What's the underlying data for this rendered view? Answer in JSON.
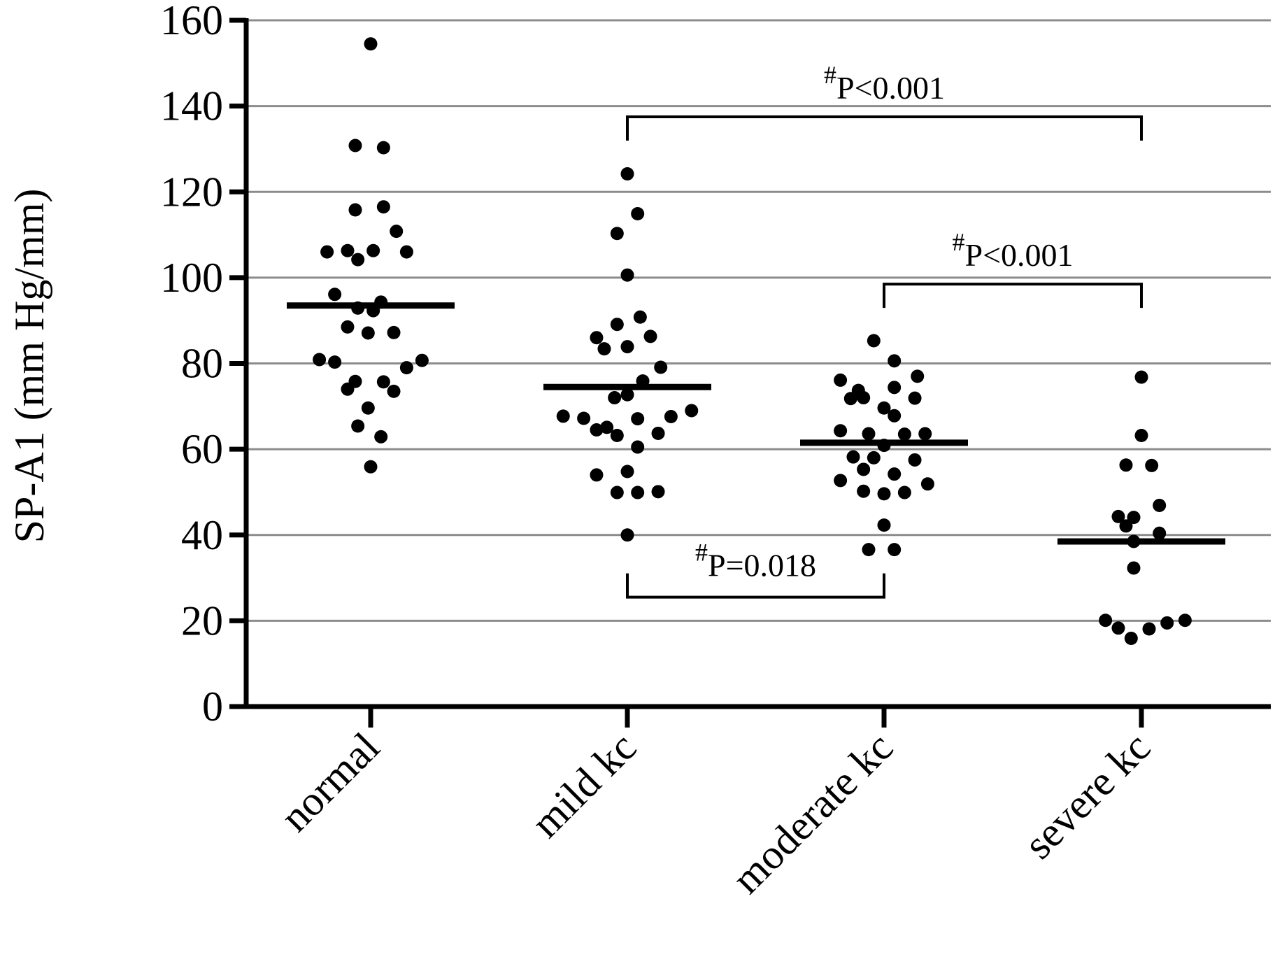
{
  "chart_data": {
    "type": "scatter",
    "ylabel": "SP-A1 (mm Hg/mm)",
    "xlabel": "",
    "ylim": [
      0,
      160
    ],
    "yticks": [
      0,
      20,
      40,
      60,
      80,
      100,
      120,
      140,
      160
    ],
    "grid": true,
    "categories": [
      "normal",
      "mild kc",
      "moderate kc",
      "severe kc"
    ],
    "series": [
      {
        "category": "normal",
        "mean": 93.5,
        "points": [
          {
            "offset": 0,
            "y": 154.5
          },
          {
            "offset": -0.06,
            "y": 130.8
          },
          {
            "offset": 0.05,
            "y": 130.3
          },
          {
            "offset": -0.06,
            "y": 115.8
          },
          {
            "offset": 0.05,
            "y": 116.5
          },
          {
            "offset": 0.1,
            "y": 110.8
          },
          {
            "offset": -0.17,
            "y": 106
          },
          {
            "offset": -0.09,
            "y": 106.3
          },
          {
            "offset": 0.01,
            "y": 106.3
          },
          {
            "offset": 0.14,
            "y": 106
          },
          {
            "offset": -0.05,
            "y": 104.2
          },
          {
            "offset": -0.14,
            "y": 96.1
          },
          {
            "offset": 0.04,
            "y": 94.3
          },
          {
            "offset": -0.05,
            "y": 92.9
          },
          {
            "offset": 0.01,
            "y": 92.3
          },
          {
            "offset": -0.09,
            "y": 88.5
          },
          {
            "offset": -0.01,
            "y": 87.1
          },
          {
            "offset": 0.09,
            "y": 87.2
          },
          {
            "offset": -0.2,
            "y": 80.9
          },
          {
            "offset": -0.14,
            "y": 80.3
          },
          {
            "offset": 0.2,
            "y": 80.7
          },
          {
            "offset": 0.14,
            "y": 79
          },
          {
            "offset": -0.06,
            "y": 75.8
          },
          {
            "offset": 0.05,
            "y": 75.7
          },
          {
            "offset": -0.09,
            "y": 74
          },
          {
            "offset": 0.09,
            "y": 73.5
          },
          {
            "offset": -0.01,
            "y": 69.6
          },
          {
            "offset": -0.05,
            "y": 65.4
          },
          {
            "offset": 0.04,
            "y": 62.9
          },
          {
            "offset": 0,
            "y": 55.9
          }
        ]
      },
      {
        "category": "mild kc",
        "mean": 74.5,
        "points": [
          {
            "offset": 0,
            "y": 124.2
          },
          {
            "offset": 0.04,
            "y": 114.9
          },
          {
            "offset": -0.04,
            "y": 110.3
          },
          {
            "offset": 0,
            "y": 100.6
          },
          {
            "offset": 0.05,
            "y": 90.8
          },
          {
            "offset": -0.04,
            "y": 89.1
          },
          {
            "offset": -0.12,
            "y": 86
          },
          {
            "offset": 0.09,
            "y": 86.3
          },
          {
            "offset": -0.09,
            "y": 83.4
          },
          {
            "offset": 0,
            "y": 83.9
          },
          {
            "offset": 0.13,
            "y": 79.1
          },
          {
            "offset": 0.06,
            "y": 75.9
          },
          {
            "offset": 0,
            "y": 72.7
          },
          {
            "offset": -0.05,
            "y": 72
          },
          {
            "offset": 0.25,
            "y": 69
          },
          {
            "offset": -0.25,
            "y": 67.7
          },
          {
            "offset": -0.17,
            "y": 67.2
          },
          {
            "offset": 0.04,
            "y": 67.1
          },
          {
            "offset": 0.17,
            "y": 67.6
          },
          {
            "offset": -0.12,
            "y": 64.5
          },
          {
            "offset": -0.08,
            "y": 65.1
          },
          {
            "offset": 0.12,
            "y": 63.7
          },
          {
            "offset": -0.04,
            "y": 63.2
          },
          {
            "offset": 0.04,
            "y": 60.5
          },
          {
            "offset": 0,
            "y": 54.8
          },
          {
            "offset": -0.12,
            "y": 54
          },
          {
            "offset": -0.04,
            "y": 49.9
          },
          {
            "offset": 0.04,
            "y": 49.9
          },
          {
            "offset": 0.12,
            "y": 50.1
          },
          {
            "offset": 0,
            "y": 40
          }
        ]
      },
      {
        "category": "moderate kc",
        "mean": 61.5,
        "points": [
          {
            "offset": -0.04,
            "y": 85.3
          },
          {
            "offset": 0.04,
            "y": 80.6
          },
          {
            "offset": -0.17,
            "y": 76.1
          },
          {
            "offset": 0.13,
            "y": 77
          },
          {
            "offset": -0.1,
            "y": 73.7
          },
          {
            "offset": 0.04,
            "y": 74.4
          },
          {
            "offset": -0.08,
            "y": 72
          },
          {
            "offset": 0.12,
            "y": 71.9
          },
          {
            "offset": -0.13,
            "y": 71.8
          },
          {
            "offset": 0,
            "y": 69.6
          },
          {
            "offset": 0.04,
            "y": 67.8
          },
          {
            "offset": -0.17,
            "y": 64.3
          },
          {
            "offset": -0.06,
            "y": 63.6
          },
          {
            "offset": 0.08,
            "y": 63.5
          },
          {
            "offset": 0.16,
            "y": 63.6
          },
          {
            "offset": 0,
            "y": 60.9
          },
          {
            "offset": -0.12,
            "y": 58.2
          },
          {
            "offset": -0.04,
            "y": 58
          },
          {
            "offset": 0.12,
            "y": 57.5
          },
          {
            "offset": -0.08,
            "y": 55.3
          },
          {
            "offset": 0.04,
            "y": 54.2
          },
          {
            "offset": -0.17,
            "y": 52.7
          },
          {
            "offset": 0.17,
            "y": 51.9
          },
          {
            "offset": -0.08,
            "y": 50.2
          },
          {
            "offset": 0,
            "y": 49.6
          },
          {
            "offset": 0.08,
            "y": 49.9
          },
          {
            "offset": 0,
            "y": 42.3
          },
          {
            "offset": -0.06,
            "y": 36.6
          },
          {
            "offset": 0.04,
            "y": 36.6
          }
        ]
      },
      {
        "category": "severe kc",
        "mean": 38.5,
        "points": [
          {
            "offset": 0,
            "y": 76.8
          },
          {
            "offset": 0,
            "y": 63.2
          },
          {
            "offset": -0.06,
            "y": 56.3
          },
          {
            "offset": 0.04,
            "y": 56.2
          },
          {
            "offset": 0.07,
            "y": 46.9
          },
          {
            "offset": -0.09,
            "y": 44.3
          },
          {
            "offset": -0.03,
            "y": 44.1
          },
          {
            "offset": -0.06,
            "y": 42.1
          },
          {
            "offset": 0.07,
            "y": 40.4
          },
          {
            "offset": -0.03,
            "y": 38.5
          },
          {
            "offset": -0.03,
            "y": 32.3
          },
          {
            "offset": -0.14,
            "y": 20.1
          },
          {
            "offset": 0.1,
            "y": 19.5
          },
          {
            "offset": 0.17,
            "y": 20.1
          },
          {
            "offset": -0.09,
            "y": 18.3
          },
          {
            "offset": 0.03,
            "y": 18.1
          },
          {
            "offset": -0.04,
            "y": 15.9
          }
        ]
      }
    ],
    "annotations": [
      {
        "label": "P<0.001",
        "marker": "#",
        "from": 1,
        "to": 3,
        "y": 137.5,
        "direction": "down"
      },
      {
        "label": "P<0.001",
        "marker": "#",
        "from": 2,
        "to": 3,
        "y": 98.5,
        "direction": "down"
      },
      {
        "label": "P=0.018",
        "marker": "#",
        "from": 1,
        "to": 2,
        "y": 25.5,
        "direction": "up"
      }
    ]
  }
}
